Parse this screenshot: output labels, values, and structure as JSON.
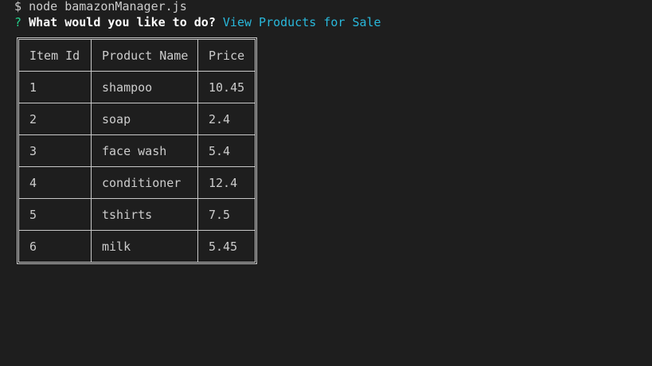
{
  "terminal": {
    "command_prompt": "$",
    "command": "node bamazonManager.js",
    "question_mark": "?",
    "question": "What would you like to do?",
    "answer": "View Products for Sale"
  },
  "table": {
    "headers": [
      "Item Id",
      "Product Name",
      "Price"
    ],
    "rows": [
      {
        "id": "1",
        "name": "shampoo",
        "price": "10.45"
      },
      {
        "id": "2",
        "name": "soap",
        "price": "2.4"
      },
      {
        "id": "3",
        "name": "face wash",
        "price": "5.4"
      },
      {
        "id": "4",
        "name": "conditioner",
        "price": "12.4"
      },
      {
        "id": "5",
        "name": "tshirts",
        "price": "7.5"
      },
      {
        "id": "6",
        "name": "milk",
        "price": "5.45"
      }
    ]
  },
  "colors": {
    "background": "#1e1e1e",
    "text": "#cccccc",
    "prompt_green": "#23d18b",
    "answer_cyan": "#29b8db"
  }
}
